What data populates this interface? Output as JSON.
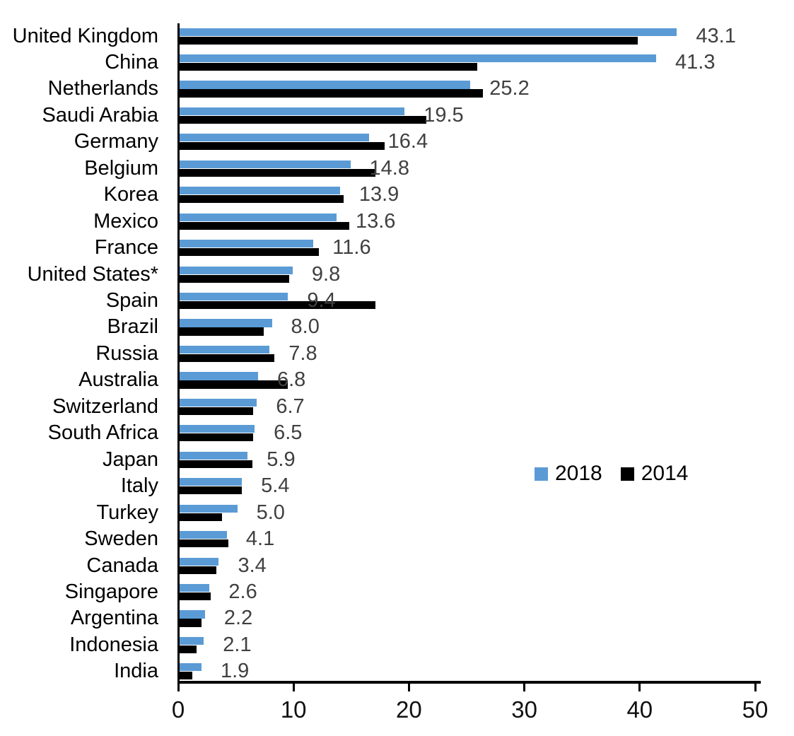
{
  "chart_data": {
    "type": "bar",
    "orientation": "horizontal",
    "title": "",
    "categories": [
      "United Kingdom",
      "China",
      "Netherlands",
      "Saudi Arabia",
      "Germany",
      "Belgium",
      "Korea",
      "Mexico",
      "France",
      "United States*",
      "Spain",
      "Brazil",
      "Russia",
      "Australia",
      "Switzerland",
      "South Africa",
      "Japan",
      "Italy",
      "Turkey",
      "Sweden",
      "Canada",
      "Singapore",
      "Argentina",
      "Indonesia",
      "India"
    ],
    "series": [
      {
        "name": "2018",
        "color": "#5B9BD5",
        "values": [
          43.1,
          41.3,
          25.2,
          19.5,
          16.4,
          14.8,
          13.9,
          13.6,
          11.6,
          9.8,
          9.4,
          8.0,
          7.8,
          6.8,
          6.7,
          6.5,
          5.9,
          5.4,
          5.0,
          4.1,
          3.4,
          2.6,
          2.2,
          2.1,
          1.9
        ],
        "data_labels": [
          "43.1",
          "41.3",
          "25.2",
          "19.5",
          "16.4",
          "14.8",
          "13.9",
          "13.6",
          "11.6",
          "9.8",
          "9.4",
          "8.0",
          "7.8",
          "6.8",
          "6.7",
          "6.5",
          "5.9",
          "5.4",
          "5.0",
          "4.1",
          "3.4",
          "2.6",
          "2.2",
          "2.1",
          "1.9"
        ],
        "labels_shown": true
      },
      {
        "name": "2014",
        "color": "#000000",
        "values": [
          39.7,
          25.8,
          26.3,
          21.4,
          17.8,
          17.0,
          14.2,
          14.7,
          12.1,
          9.5,
          17.0,
          7.3,
          8.2,
          9.4,
          6.4,
          6.4,
          6.3,
          5.4,
          3.7,
          4.2,
          3.2,
          2.7,
          1.9,
          1.5,
          1.1
        ],
        "labels_shown": false
      }
    ],
    "x_axis": {
      "min": 0,
      "max": 50,
      "tick_interval": 10,
      "tick_labels": [
        "0",
        "10",
        "20",
        "30",
        "40",
        "50"
      ]
    },
    "y_axis": {
      "label": ""
    },
    "legend": {
      "position": "middle-right",
      "entries": [
        "2018",
        "2014"
      ]
    },
    "grid": "off",
    "value_label_color": "#404040",
    "axis_color": "#000000"
  }
}
